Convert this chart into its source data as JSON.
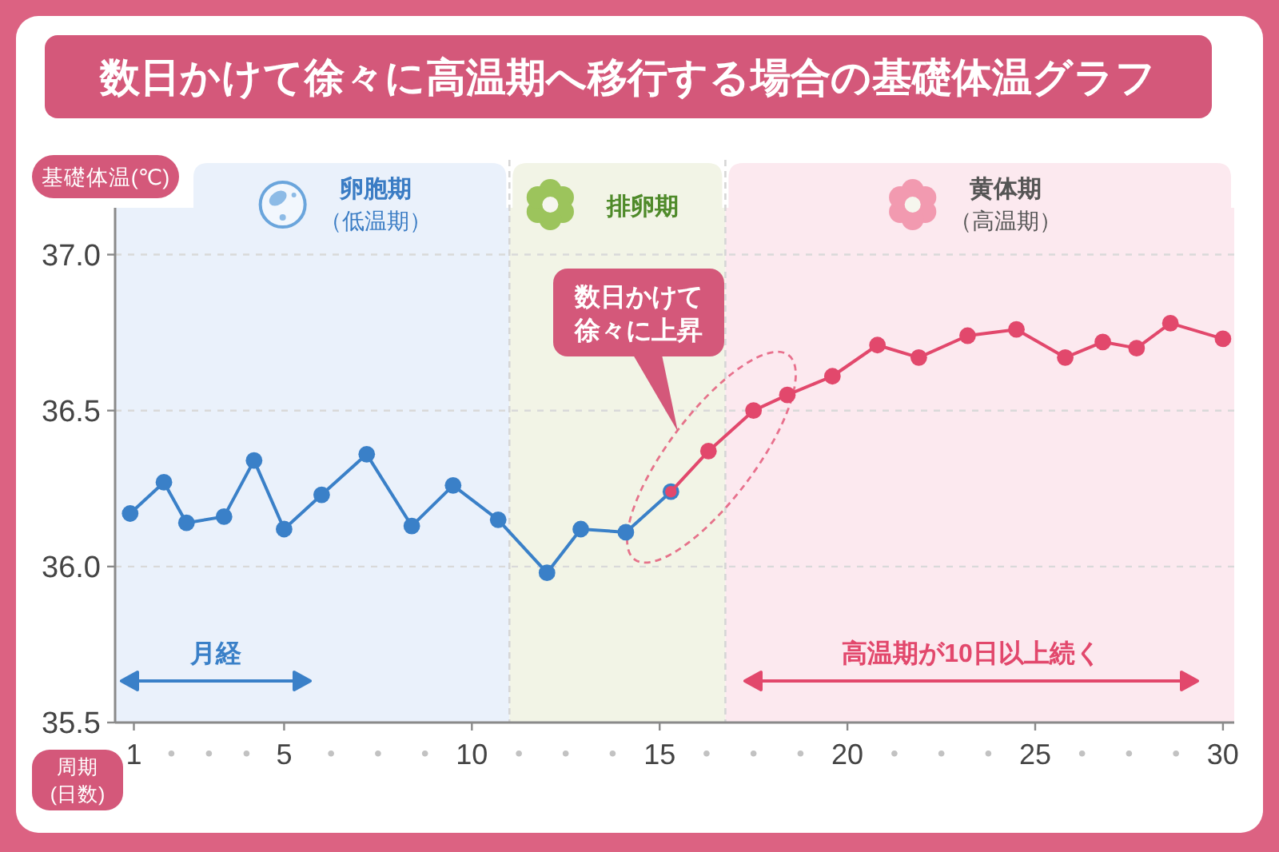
{
  "chart_data": {
    "type": "line",
    "title": "数日かけて徐々に高温期へ移行する場合の基礎体温グラフ",
    "xlabel": "周期(日数)",
    "ylabel": "基礎体温(℃)",
    "series": [
      {
        "color": "#3a80c8",
        "x": [
          0.9,
          1.8,
          2.4,
          3.4,
          4.2,
          5.0,
          6.0,
          7.2,
          8.4,
          9.5,
          10.7,
          12.0,
          12.9,
          14.1,
          15.3
        ],
        "values": [
          36.17,
          36.27,
          36.14,
          36.16,
          36.34,
          36.12,
          36.23,
          36.36,
          36.13,
          36.26,
          36.15,
          35.98,
          36.12,
          36.11,
          36.24
        ]
      },
      {
        "color": "#e2486c",
        "x": [
          15.3,
          16.3,
          17.5,
          18.4,
          19.6,
          20.8,
          21.9,
          23.2,
          24.5,
          25.8,
          26.8,
          27.7,
          28.6,
          30.0
        ],
        "values": [
          36.24,
          36.37,
          36.5,
          36.55,
          36.61,
          36.71,
          36.67,
          36.74,
          36.76,
          36.67,
          36.72,
          36.7,
          36.78,
          36.73
        ]
      }
    ],
    "xlim": [
      0.5,
      30.3
    ],
    "xticks": [
      1,
      {
        "value": 2,
        "label": "•"
      },
      {
        "value": 3,
        "label": "•"
      },
      {
        "value": 4,
        "label": "•"
      },
      5,
      {
        "value": 6.25,
        "label": "•"
      },
      {
        "value": 7.5,
        "label": "•"
      },
      {
        "value": 8.75,
        "label": "•"
      },
      10,
      {
        "value": 11.25,
        "label": "•"
      },
      {
        "value": 12.5,
        "label": "•"
      },
      {
        "value": 13.75,
        "label": "•"
      },
      15,
      {
        "value": 16.25,
        "label": "•"
      },
      {
        "value": 17.5,
        "label": "•"
      },
      {
        "value": 18.75,
        "label": "•"
      },
      20,
      {
        "value": 21.25,
        "label": "•"
      },
      {
        "value": 22.5,
        "label": "•"
      },
      {
        "value": 23.75,
        "label": "•"
      },
      25,
      {
        "value": 26.25,
        "label": "•"
      },
      {
        "value": 27.5,
        "label": "•"
      },
      {
        "value": 28.75,
        "label": "•"
      },
      30
    ],
    "ylim": [
      35.5,
      37.15
    ],
    "yticks": [
      35.5,
      {
        "value": 36,
        "label": "36.0"
      },
      36.5,
      {
        "value": 37,
        "label": "37.0"
      }
    ],
    "grid": "y",
    "marker": "circle",
    "line_style": "solid",
    "bands": [
      {
        "axis": "x",
        "from": 0.5,
        "to": 11,
        "label": "卵胞期（低温期）",
        "color": "#eaf1fb"
      },
      {
        "axis": "x",
        "from": 11,
        "to": 16.75,
        "label": "排卵期",
        "color": "#f2f4e6"
      },
      {
        "axis": "x",
        "from": 16.75,
        "to": 30.3,
        "label": "黄体期（高温期）",
        "color": "#fce9ef"
      }
    ],
    "ref_lines": [
      {
        "axis": "x",
        "value": 11,
        "color": "#d6d6d6",
        "line_style": "dashed"
      },
      {
        "axis": "x",
        "value": 16.75,
        "color": "#d6d6d6",
        "line_style": "dashed"
      }
    ],
    "annotations": [
      "数日かけて徐々に上昇",
      "月経",
      "高温期が10日以上続く"
    ]
  }
}
